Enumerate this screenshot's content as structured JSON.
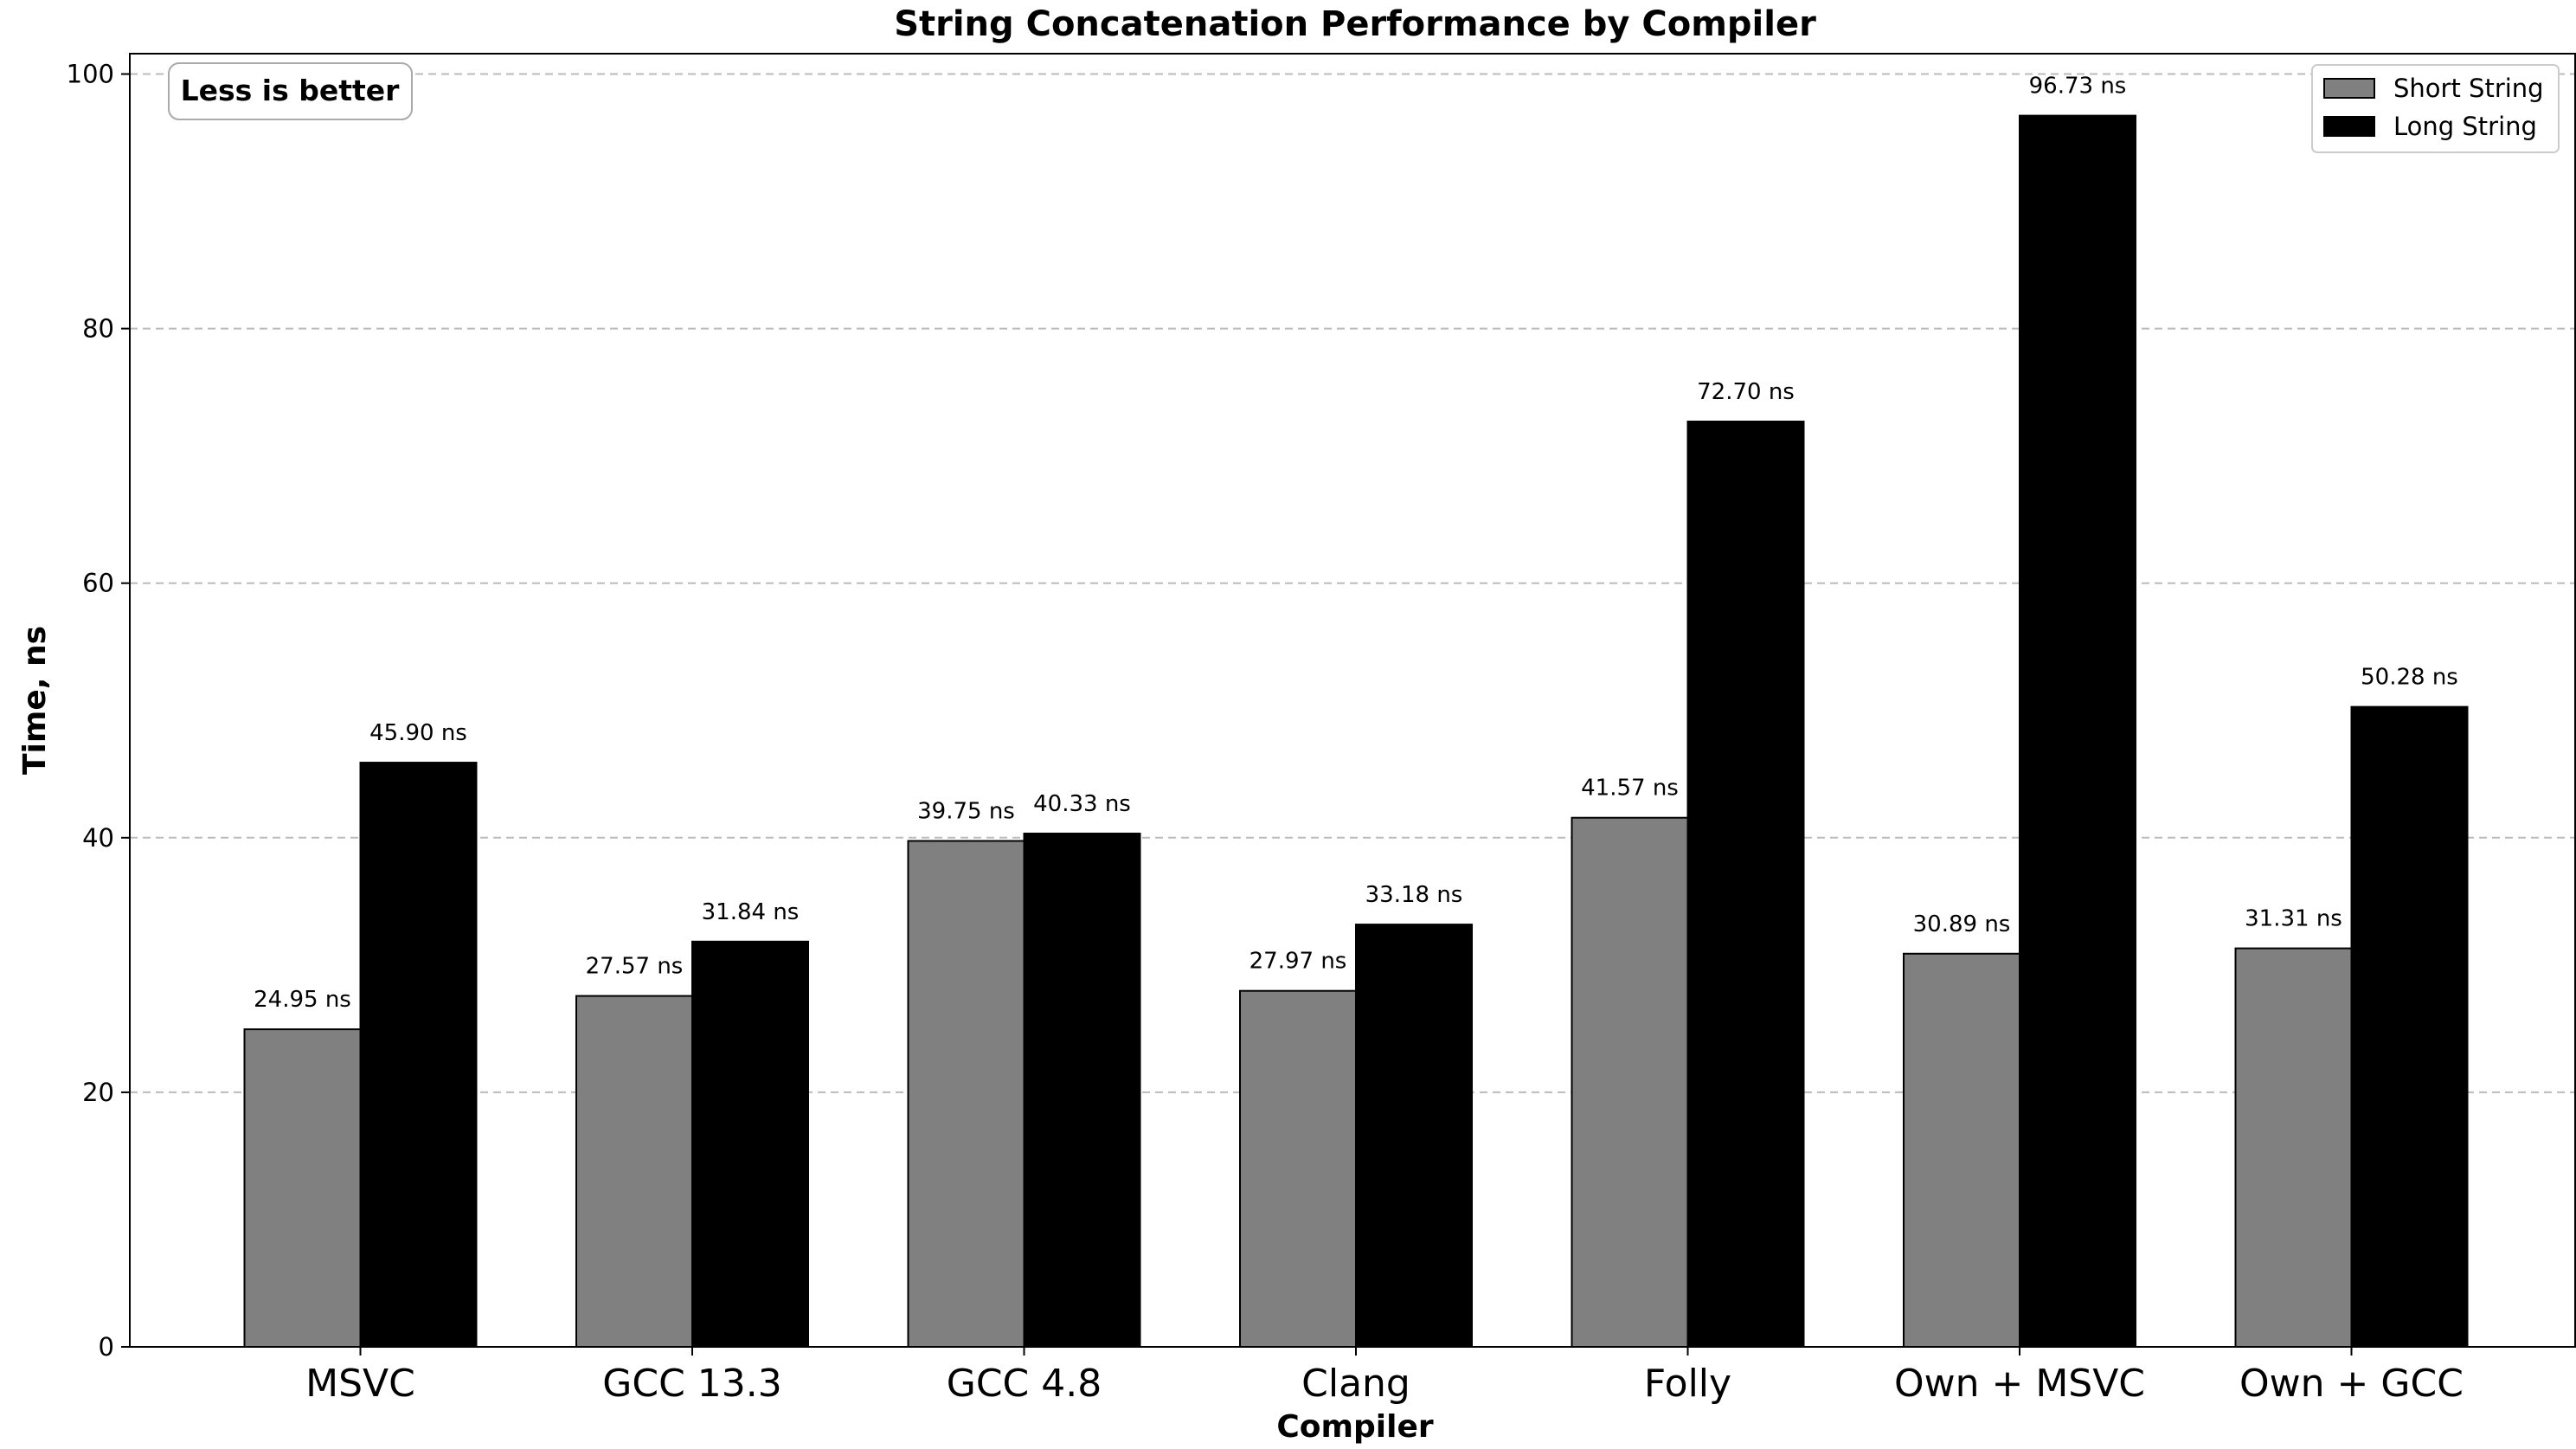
{
  "chart_data": {
    "type": "bar",
    "title": "String Concatenation Performance by Compiler",
    "xlabel": "Compiler",
    "ylabel": "Time, ns",
    "ylim": [
      0,
      101.6
    ],
    "yticks": [
      0,
      20,
      40,
      60,
      80,
      100
    ],
    "grid": "horizontal dashed",
    "legend_position": "top-right",
    "annotation": "Less is better",
    "value_suffix": " ns",
    "categories": [
      "MSVC",
      "GCC 13.3",
      "GCC 4.8",
      "Clang",
      "Folly",
      "Own + MSVC",
      "Own + GCC"
    ],
    "series": [
      {
        "name": "Short String",
        "color": "#808080",
        "values": [
          24.95,
          27.57,
          39.75,
          27.97,
          41.57,
          30.89,
          31.31
        ],
        "labels": [
          "24.95 ns",
          "27.57 ns",
          "39.75 ns",
          "27.97 ns",
          "41.57 ns",
          "30.89 ns",
          "31.31 ns"
        ]
      },
      {
        "name": "Long String",
        "color": "#000000",
        "values": [
          45.9,
          31.84,
          40.33,
          33.18,
          72.7,
          96.73,
          50.28
        ],
        "labels": [
          "45.90 ns",
          "31.84 ns",
          "40.33 ns",
          "33.18 ns",
          "72.70 ns",
          "96.73 ns",
          "50.28 ns"
        ]
      }
    ]
  }
}
